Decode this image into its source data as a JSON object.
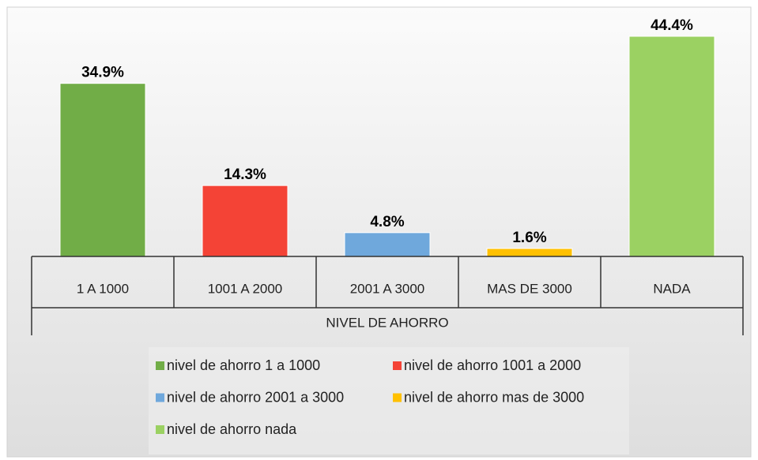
{
  "chart_data": {
    "type": "bar",
    "categories": [
      "1 A 1000",
      "1001 A 2000",
      "2001 A 3000",
      "MAS DE 3000",
      "NADA"
    ],
    "x_label": "NIVEL DE AHORRO",
    "series": [
      {
        "name": "nivel de ahorro 1 a 1000",
        "color": "#71ad47",
        "values": [
          34.9,
          null,
          null,
          null,
          null
        ],
        "value_labels": [
          "34.9%",
          null,
          null,
          null,
          null
        ]
      },
      {
        "name": "nivel de ahorro 1001 a 2000",
        "color": "#f44336",
        "values": [
          null,
          14.3,
          null,
          null,
          null
        ],
        "value_labels": [
          null,
          "14.3%",
          null,
          null,
          null
        ]
      },
      {
        "name": "nivel de ahorro 2001 a 3000",
        "color": "#6fa8dc",
        "values": [
          null,
          null,
          4.8,
          null,
          null
        ],
        "value_labels": [
          null,
          null,
          "4.8%",
          null,
          null
        ]
      },
      {
        "name": "nivel de ahorro mas de 3000",
        "color": "#ffc000",
        "values": [
          null,
          null,
          null,
          1.6,
          null
        ],
        "value_labels": [
          null,
          null,
          null,
          "1.6%",
          null
        ]
      },
      {
        "name": "nivel de ahorro nada",
        "color": "#9bd162",
        "values": [
          null,
          null,
          null,
          null,
          44.4
        ],
        "value_labels": [
          null,
          null,
          null,
          null,
          "44.4%"
        ]
      }
    ],
    "legend": "bottom"
  }
}
